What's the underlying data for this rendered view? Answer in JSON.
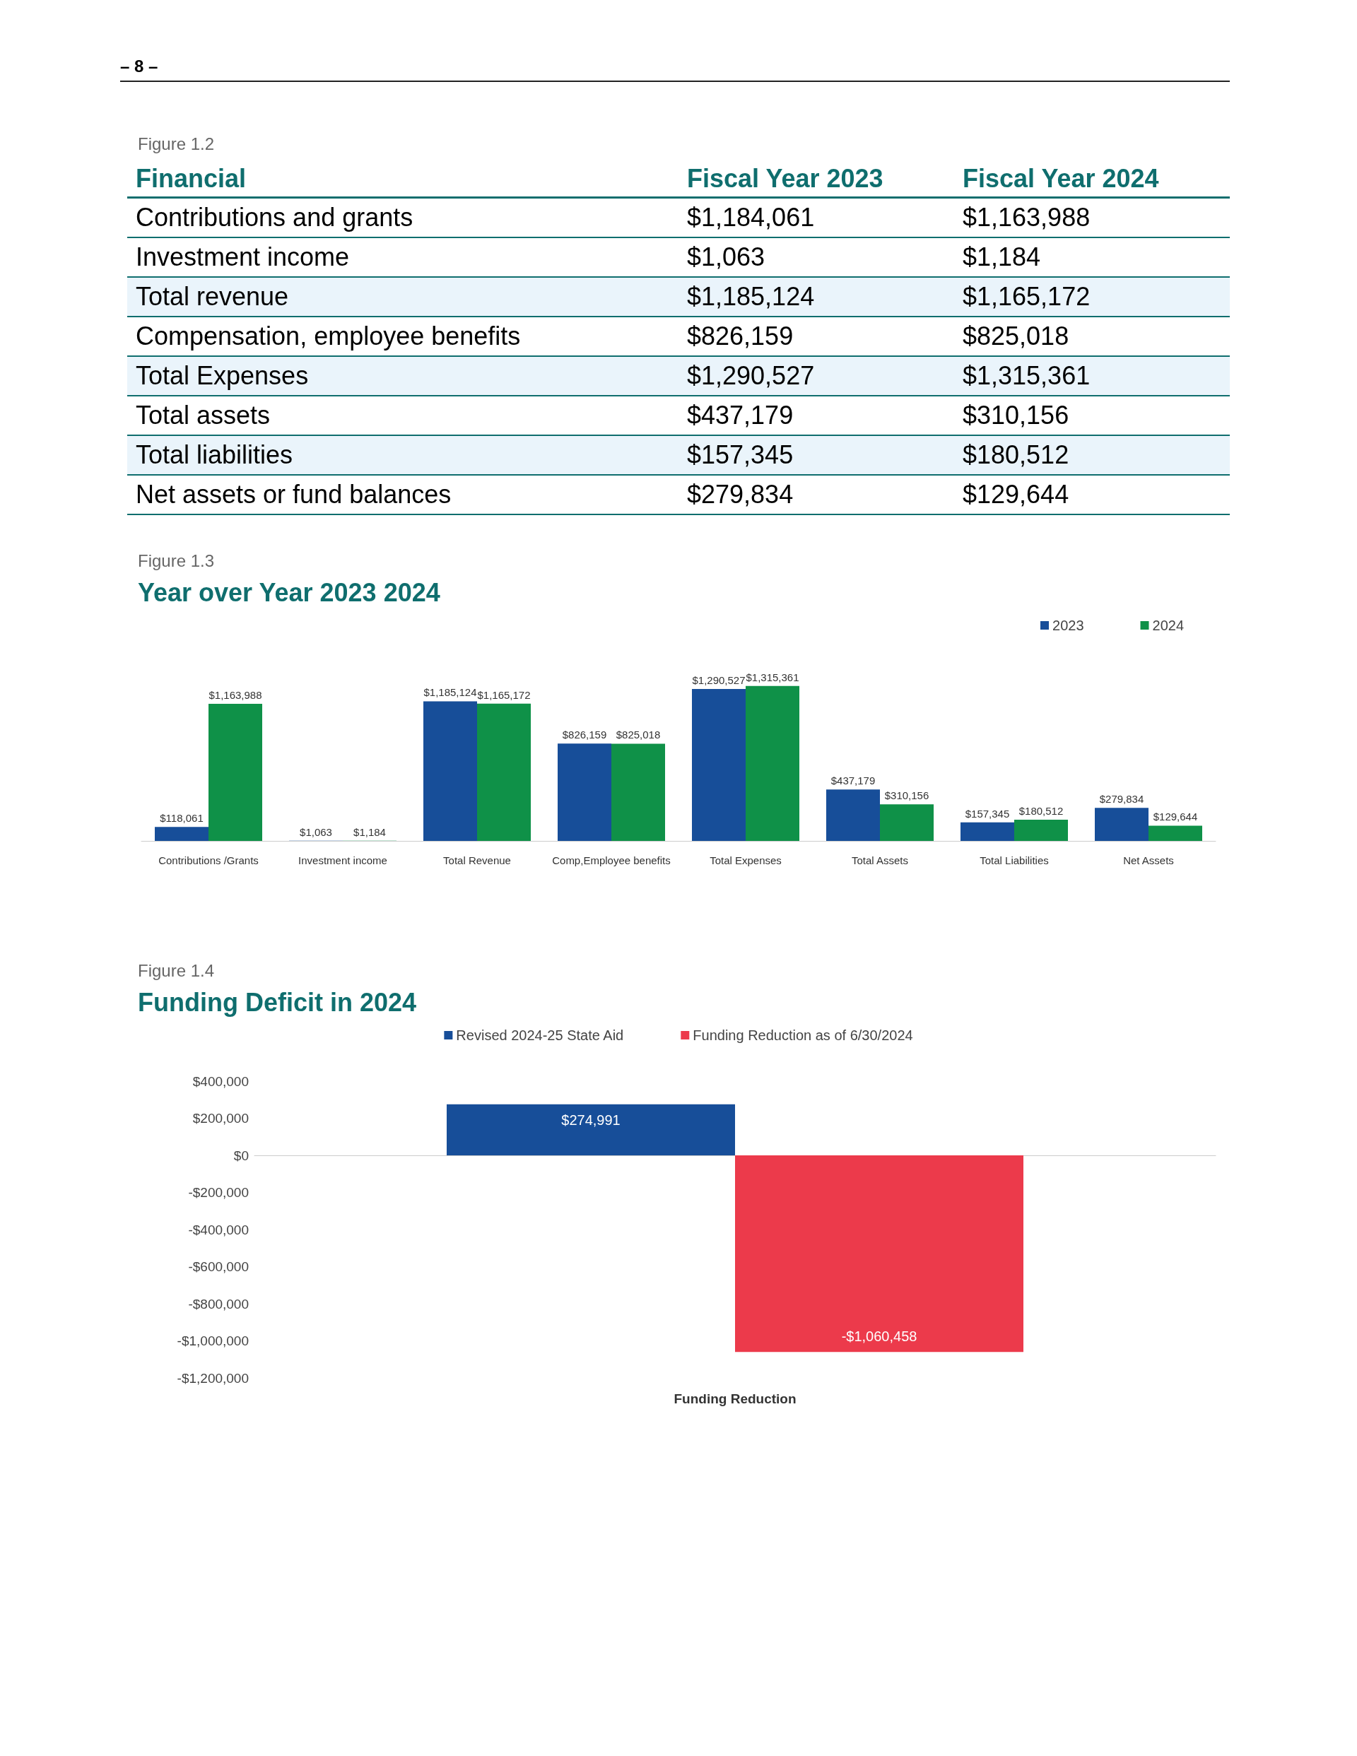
{
  "chart_data": [
    {
      "type": "other",
      "subtitle": "Figure 1.2",
      "xlabel": "Financial",
      "annotations": [
        "– 8 –"
      ],
      "categories": [
        "Contributions and grants",
        "Investment income",
        "Total revenue",
        "Compensation, employee benefits",
        "Total Expenses",
        "Total assets",
        "Total liabilities",
        "Net assets or fund balances"
      ],
      "series": [
        {
          "name": "Fiscal Year 2023",
          "values": [
            1184061,
            1063,
            1185124,
            826159,
            1290527,
            437179,
            157345,
            279834
          ],
          "value_labels": [
            "$1,184,061",
            "$1,063",
            "$1,185,124",
            "$826,159",
            "$1,290,527",
            "$437,179",
            "$157,345",
            "$279,834"
          ]
        },
        {
          "name": "Fiscal Year 2024",
          "values": [
            1163988,
            1184,
            1165172,
            825018,
            1315361,
            310156,
            180512,
            129644
          ],
          "value_labels": [
            "$1,163,988",
            "$1,184",
            "$1,165,172",
            "$825,018",
            "$1,315,361",
            "$310,156",
            "$180,512",
            "$129,644"
          ]
        }
      ]
    },
    {
      "type": "bar",
      "subtitle": "Figure 1.3",
      "title": "Year over Year 2023 2024",
      "legend": "top right",
      "categories": [
        "Contributions /Grants",
        "Investment income",
        "Total Revenue",
        "Comp,Employee benefits",
        "Total Expenses",
        "Total Assets",
        "Total Liabilities",
        "Net Assets"
      ],
      "series": [
        {
          "name": "2023",
          "color": "#174e99",
          "values": [
            118061,
            1063,
            1185124,
            826159,
            1290527,
            437179,
            157345,
            279834
          ],
          "value_labels": [
            "$118,061",
            "$1,063",
            "$1,185,124",
            "$826,159",
            "$1,290,527",
            "$437,179",
            "$157,345",
            "$279,834"
          ]
        },
        {
          "name": "2024",
          "color": "#0f9148",
          "values": [
            1163988,
            1184,
            1165172,
            825018,
            1315361,
            310156,
            180512,
            129644
          ],
          "value_labels": [
            "$1,163,988",
            "$1,184",
            "$1,165,172",
            "$825,018",
            "$1,315,361",
            "$310,156",
            "$180,512",
            "$129,644"
          ]
        }
      ]
    },
    {
      "type": "bar",
      "subtitle": "Figure 1.4",
      "title": "Funding Deficit in 2024",
      "legend": "top",
      "categories": [
        "Funding Reduction"
      ],
      "ylim": [
        -1200000,
        400000
      ],
      "yticks": [
        {
          "value": 400000,
          "label": "$400,000"
        },
        {
          "value": 200000,
          "label": "$200,000"
        },
        {
          "value": 0,
          "label": "$0"
        },
        {
          "value": -200000,
          "label": "-$200,000"
        },
        {
          "value": -400000,
          "label": "-$400,000"
        },
        {
          "value": -600000,
          "label": "-$600,000"
        },
        {
          "value": -800000,
          "label": "-$800,000"
        },
        {
          "value": -1000000,
          "label": "-$1,000,000"
        },
        {
          "value": -1200000,
          "label": "-$1,200,000"
        }
      ],
      "series": [
        {
          "name": "Revised 2024-25 State Aid",
          "color": "#174e99",
          "values": [
            274991
          ],
          "value_labels": [
            "$274,991"
          ]
        },
        {
          "name": "Funding Reduction as of 6/30/2024",
          "color": "#ec3a4b",
          "values": [
            -1060458
          ],
          "value_labels": [
            "-$1,060,458"
          ]
        }
      ]
    }
  ]
}
